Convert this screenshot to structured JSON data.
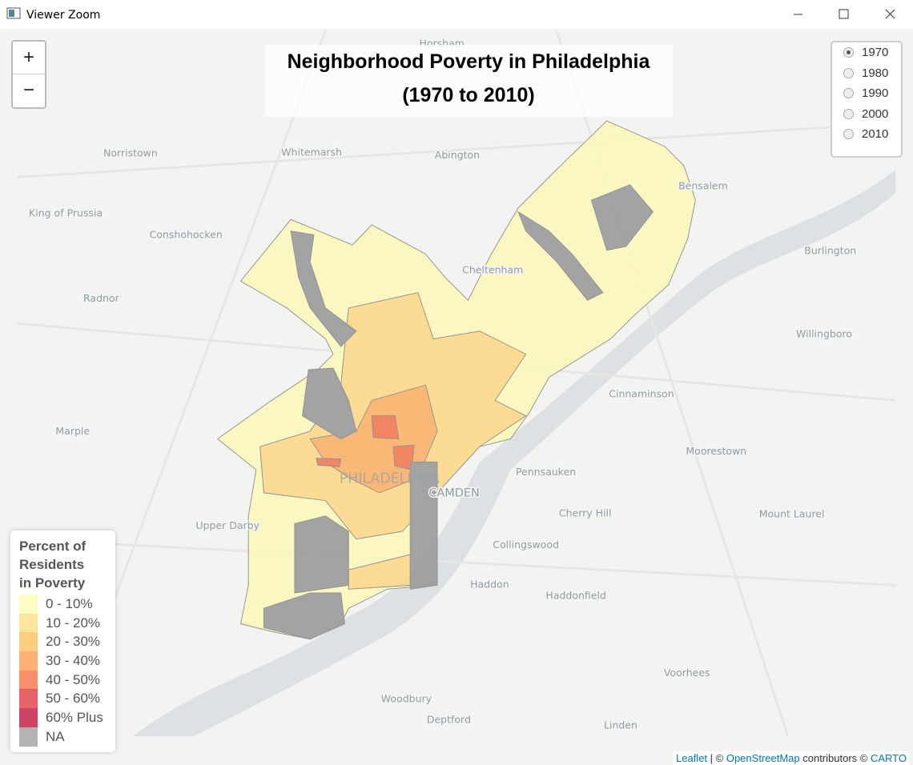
{
  "window": {
    "title": "Viewer Zoom"
  },
  "zoom": {
    "in": "+",
    "out": "−"
  },
  "title": [
    "Neighborhood Poverty in Philadelphia",
    "(1970 to 2010)"
  ],
  "years": {
    "options": [
      "1970",
      "1980",
      "1990",
      "2000",
      "2010"
    ],
    "selected": "1970"
  },
  "legend": {
    "title": [
      "Percent of",
      "Residents",
      "in Poverty"
    ],
    "items": [
      {
        "label": "0 - 10%",
        "color": "#fdfbb8"
      },
      {
        "label": "10 - 20%",
        "color": "#fde08a"
      },
      {
        "label": "20 - 30%",
        "color": "#fdc46a"
      },
      {
        "label": "30 - 40%",
        "color": "#fca35a"
      },
      {
        "label": "40 - 50%",
        "color": "#f77a50"
      },
      {
        "label": "50 - 60%",
        "color": "#e5474f"
      },
      {
        "label": "60% Plus",
        "color": "#c4234a"
      },
      {
        "label": "NA",
        "color": "#a6a6a6"
      }
    ]
  },
  "places": [
    "Horsham",
    "Norristown",
    "Whitemarsh",
    "Abington",
    "Bensalem",
    "King of Prussia",
    "Conshohocken",
    "Cheltenham",
    "Burlington",
    "Radnor",
    "Willingboro",
    "Cinnaminson",
    "Marple",
    "Moorestown",
    "Pennsauken",
    "PHILADELPHIA",
    "CAMDEN",
    "Cherry Hill",
    "Mount Laurel",
    "Upper Darby",
    "Collingswood",
    "Haddon",
    "Haddonfield",
    "Voorhees",
    "Woodbury",
    "Deptford",
    "Linden"
  ],
  "attribution": [
    "Leaflet",
    " | © ",
    "OpenStreetMap",
    " contributors © ",
    "CARTO"
  ]
}
